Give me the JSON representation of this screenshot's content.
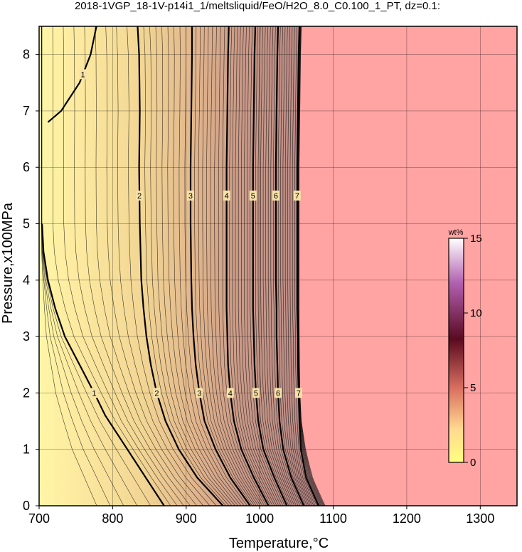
{
  "chart_data": {
    "type": "heatmap",
    "title": "2018-1VGP_18-1V-p14i1_1/meltsliquid/FeO/H2O_8.0_C0.100_1_PT, dz=0.1:",
    "xlabel": "Temperature,°C",
    "ylabel": "Pressure,x100MPa",
    "xlim": [
      700,
      1350
    ],
    "ylim": [
      0,
      8.5
    ],
    "x_ticks": [
      700,
      800,
      900,
      1000,
      1100,
      1200,
      1300
    ],
    "y_ticks": [
      0,
      1,
      2,
      3,
      4,
      5,
      6,
      7,
      8
    ],
    "grid": true,
    "colorbar": {
      "unit": "wt%",
      "range": [
        0,
        15
      ],
      "ticks": [
        0,
        5,
        10,
        15
      ],
      "colors": [
        "#ffff80",
        "#ffcc88",
        "#c84040",
        "#500020",
        "#b050b0",
        "#ffffff"
      ]
    },
    "no_melt_color": "#ffa3a3",
    "major_contours": [
      {
        "level": 1,
        "label": "1",
        "points": [
          [
            870,
            0
          ],
          [
            845,
            0.5
          ],
          [
            820,
            1
          ],
          [
            790,
            1.6
          ],
          [
            775,
            2
          ],
          [
            755,
            2.5
          ],
          [
            735,
            3
          ],
          [
            722,
            3.5
          ],
          [
            712,
            4
          ],
          [
            706,
            4.5
          ],
          [
            704,
            5
          ]
        ]
      },
      {
        "level": 1,
        "label": "1",
        "points": [
          [
            712,
            6.8
          ],
          [
            730,
            7
          ],
          [
            755,
            7.5
          ],
          [
            770,
            8
          ],
          [
            778,
            8.5
          ]
        ]
      },
      {
        "level": 2,
        "label": "2",
        "points": [
          [
            950,
            0
          ],
          [
            915,
            0.5
          ],
          [
            890,
            1
          ],
          [
            872,
            1.5
          ],
          [
            860,
            2
          ],
          [
            852,
            2.5
          ],
          [
            846,
            3
          ],
          [
            842,
            3.5
          ],
          [
            839,
            4
          ],
          [
            837,
            5
          ],
          [
            836,
            6
          ],
          [
            837,
            7
          ],
          [
            836,
            8
          ],
          [
            834,
            8.5
          ]
        ]
      },
      {
        "level": 3,
        "label": "3",
        "points": [
          [
            987,
            0
          ],
          [
            960,
            0.5
          ],
          [
            940,
            1
          ],
          [
            925,
            1.5
          ],
          [
            918,
            2
          ],
          [
            913,
            2.5
          ],
          [
            910,
            3
          ],
          [
            908,
            3.5
          ],
          [
            907,
            4
          ],
          [
            906,
            5
          ],
          [
            906,
            6
          ],
          [
            907,
            7
          ],
          [
            908,
            8
          ],
          [
            908,
            8.5
          ]
        ]
      },
      {
        "level": 4,
        "label": "4",
        "points": [
          [
            1012,
            0
          ],
          [
            992,
            0.5
          ],
          [
            975,
            1
          ],
          [
            965,
            1.5
          ],
          [
            960,
            2
          ],
          [
            957,
            2.5
          ],
          [
            956,
            3
          ],
          [
            955,
            3.5
          ],
          [
            955,
            4
          ],
          [
            955,
            5
          ],
          [
            955,
            6
          ],
          [
            956,
            7
          ],
          [
            957,
            8
          ],
          [
            958,
            8.5
          ]
        ]
      },
      {
        "level": 5,
        "label": "5",
        "points": [
          [
            1037,
            0
          ],
          [
            1020,
            0.5
          ],
          [
            1005,
            1
          ],
          [
            998,
            1.5
          ],
          [
            995,
            2
          ],
          [
            993,
            2.5
          ],
          [
            992,
            3
          ],
          [
            991,
            3.5
          ],
          [
            991,
            4
          ],
          [
            991,
            5
          ],
          [
            991,
            6
          ],
          [
            992,
            7
          ],
          [
            993,
            8
          ],
          [
            994,
            8.5
          ]
        ]
      },
      {
        "level": 6,
        "label": "6",
        "points": [
          [
            1060,
            0
          ],
          [
            1043,
            0.5
          ],
          [
            1032,
            1
          ],
          [
            1027,
            1.5
          ],
          [
            1025,
            2
          ],
          [
            1024,
            2.5
          ],
          [
            1023,
            3
          ],
          [
            1023,
            3.5
          ],
          [
            1022,
            4
          ],
          [
            1022,
            5
          ],
          [
            1022,
            6
          ],
          [
            1023,
            7
          ],
          [
            1024,
            8
          ],
          [
            1025,
            8.5
          ]
        ]
      },
      {
        "level": 7,
        "label": "7",
        "points": [
          [
            1080,
            0
          ],
          [
            1063,
            0.5
          ],
          [
            1056,
            1
          ],
          [
            1054,
            1.5
          ],
          [
            1053,
            2
          ],
          [
            1052,
            2.5
          ],
          [
            1052,
            3
          ],
          [
            1051,
            3.5
          ],
          [
            1051,
            4
          ],
          [
            1051,
            5
          ],
          [
            1051,
            6
          ],
          [
            1052,
            7
          ],
          [
            1053,
            8
          ],
          [
            1054,
            8.5
          ]
        ]
      }
    ],
    "melt_boundary": [
      [
        1090,
        0
      ],
      [
        1085,
        0.1
      ],
      [
        1075,
        0.4
      ],
      [
        1066,
        0.8
      ],
      [
        1060,
        1.2
      ],
      [
        1056,
        1.6
      ],
      [
        1055,
        2
      ],
      [
        1054,
        3
      ],
      [
        1054,
        4
      ],
      [
        1054,
        5
      ],
      [
        1054,
        6
      ],
      [
        1055,
        7
      ],
      [
        1056,
        8
      ],
      [
        1057,
        8.5
      ]
    ]
  }
}
